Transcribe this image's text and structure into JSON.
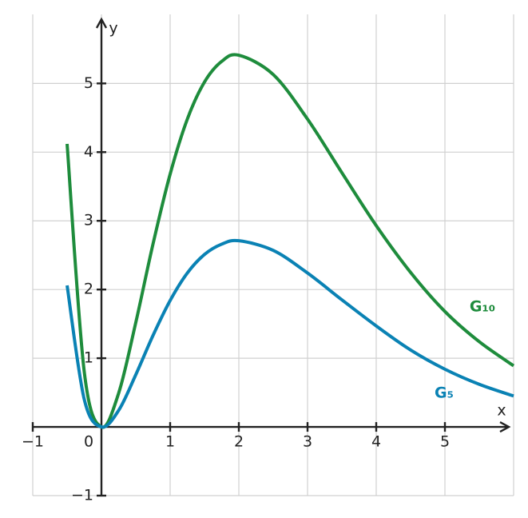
{
  "chart_data": {
    "type": "line",
    "x_label": "x",
    "y_label": "y",
    "xlim": [
      -1,
      6
    ],
    "ylim": [
      -1,
      5.9
    ],
    "xticks": [
      {
        "value": -1,
        "label": "−1"
      },
      0,
      1,
      2,
      3,
      4,
      5
    ],
    "yticks": [
      {
        "value": -1,
        "label": "−1"
      },
      1,
      2,
      3,
      4,
      5
    ],
    "grid": true,
    "x": [
      -0.5,
      -0.25,
      0,
      0.25,
      0.5,
      0.75,
      1,
      1.25,
      1.5,
      1.75,
      2,
      2.5,
      3,
      3.5,
      4,
      4.5,
      5,
      5.5,
      6
    ],
    "series": [
      {
        "name": "G₁₀",
        "color": "#1e8c3c",
        "values": [
          4.12,
          0.8,
          0,
          0.49,
          1.52,
          2.66,
          3.68,
          4.48,
          5.02,
          5.32,
          5.41,
          5.13,
          4.48,
          3.7,
          2.93,
          2.25,
          1.68,
          1.24,
          0.89
        ]
      },
      {
        "name": "G₅",
        "color": "#0a82b4",
        "values": [
          2.06,
          0.4,
          0,
          0.24,
          0.76,
          1.33,
          1.84,
          2.24,
          2.51,
          2.66,
          2.71,
          2.57,
          2.24,
          1.85,
          1.47,
          1.12,
          0.84,
          0.62,
          0.45
        ]
      }
    ]
  }
}
